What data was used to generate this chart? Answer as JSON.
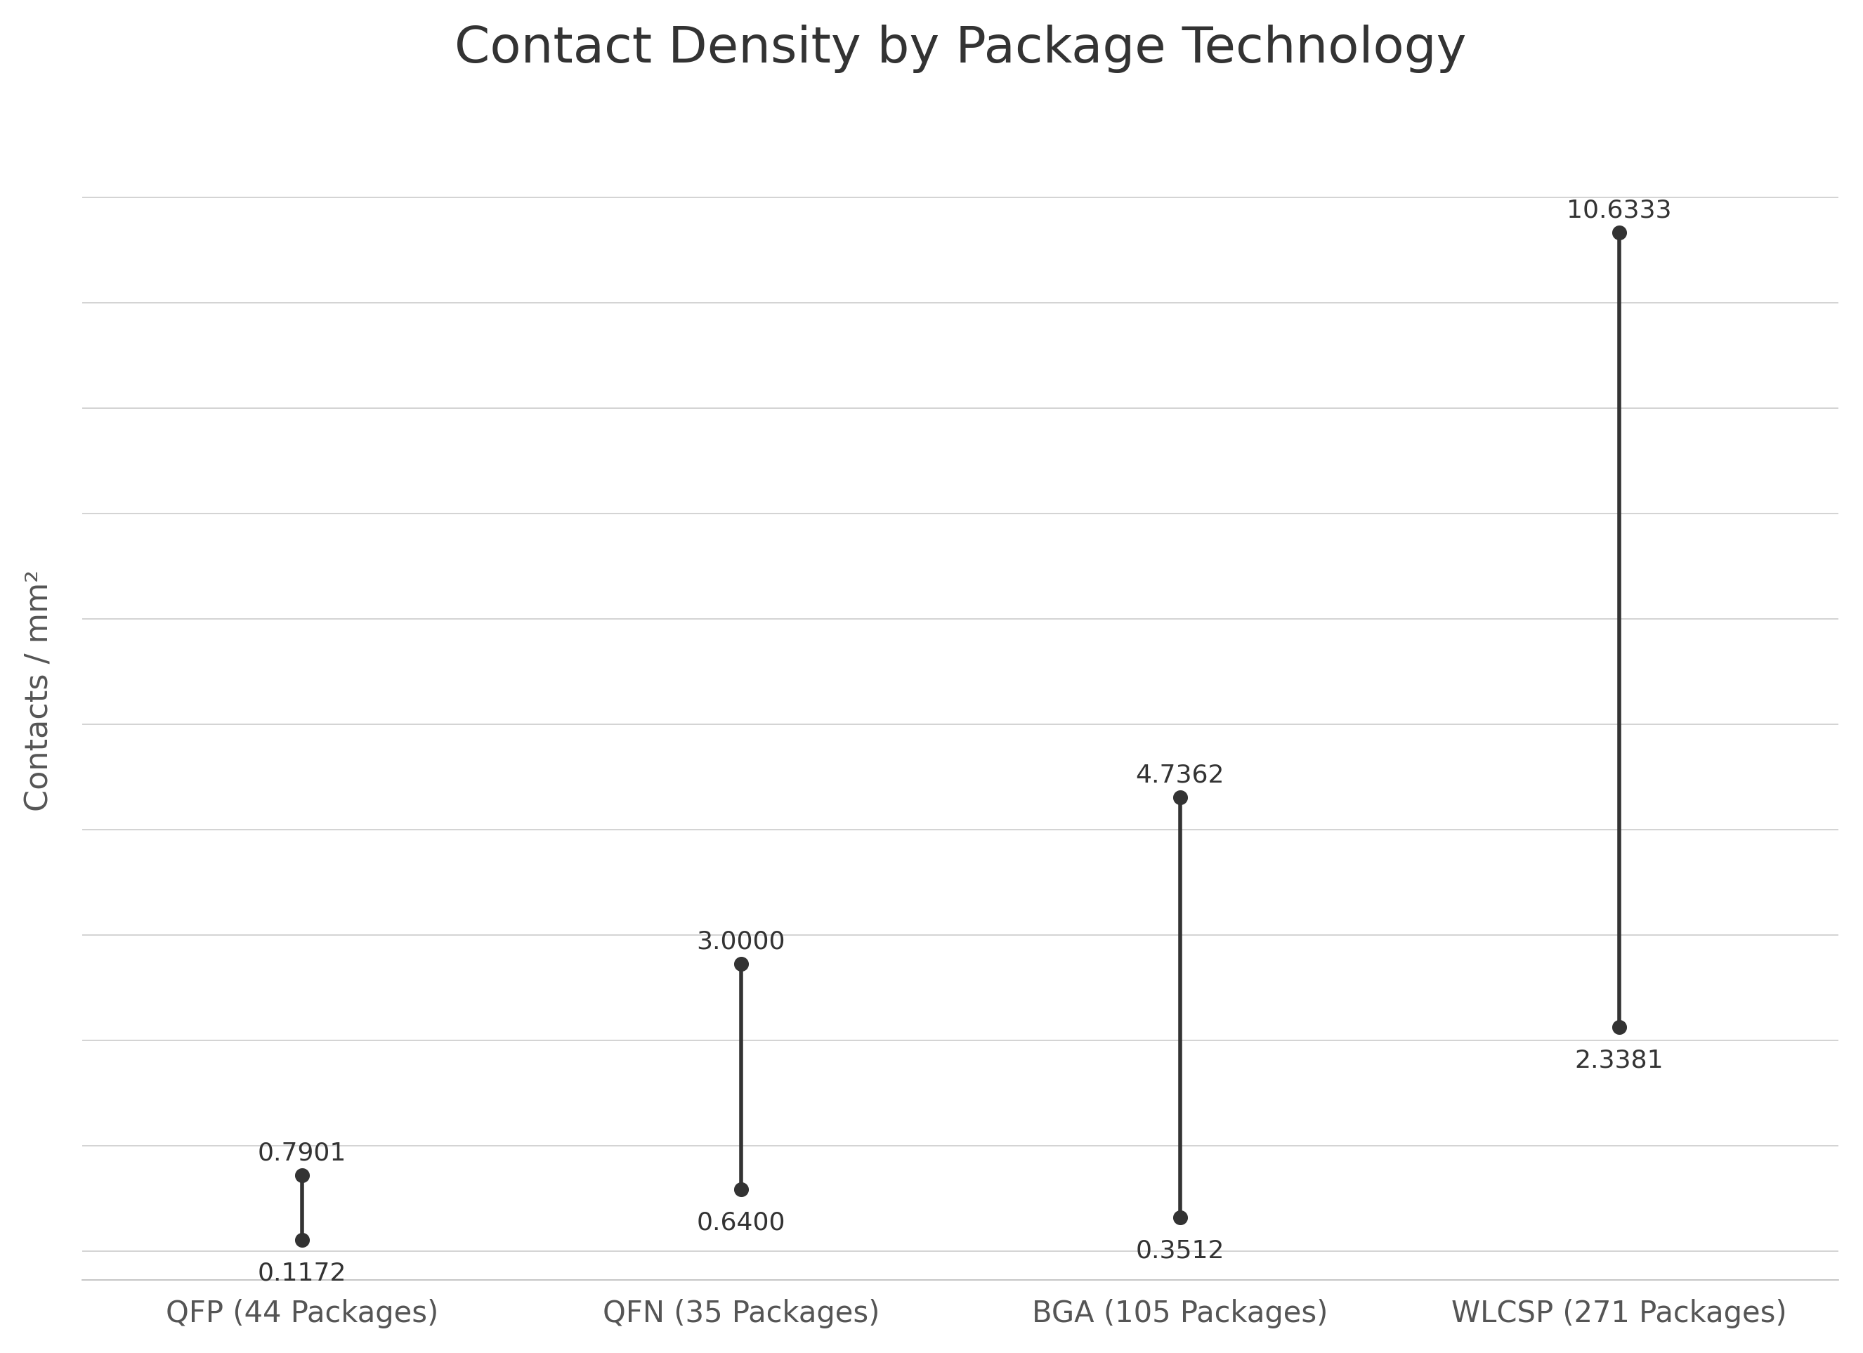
{
  "title": "Contact Density by Package Technology",
  "ylabel": "Contacts / mm²",
  "categories": [
    "QFP (44 Packages)",
    "QFN (35 Packages)",
    "BGA (105 Packages)",
    "WLCSP (271 Packages)"
  ],
  "high_values": [
    0.7901,
    3.0,
    4.7362,
    10.6333
  ],
  "low_values": [
    0.1172,
    0.64,
    0.3512,
    2.3381
  ],
  "high_labels": [
    "0.7901",
    "3.0000",
    "4.7362",
    "10.6333"
  ],
  "low_labels": [
    "0.1172",
    "0.6400",
    "0.3512",
    "2.3381"
  ],
  "dot_color": "#333333",
  "line_color": "#333333",
  "background_color": "#ffffff",
  "grid_color": "#cccccc",
  "border_color": "#bbbbbb",
  "ylim": [
    -0.3,
    12.0
  ],
  "num_gridlines": 11,
  "title_fontsize": 52,
  "label_fontsize": 32,
  "tick_fontsize": 30,
  "annotation_fontsize": 26,
  "dot_size": 200,
  "line_width": 4.0
}
